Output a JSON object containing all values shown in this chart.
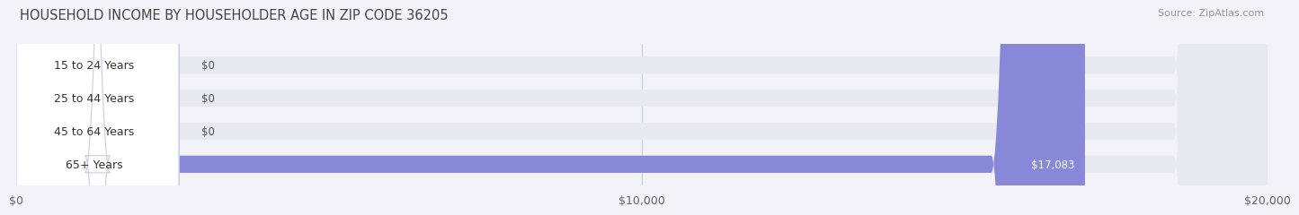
{
  "title": "HOUSEHOLD INCOME BY HOUSEHOLDER AGE IN ZIP CODE 36205",
  "source": "Source: ZipAtlas.com",
  "categories": [
    "15 to 24 Years",
    "25 to 44 Years",
    "45 to 64 Years",
    "65+ Years"
  ],
  "values": [
    0,
    0,
    0,
    17083
  ],
  "bar_colors": [
    "#a8c8e8",
    "#c8a8d8",
    "#88d0c8",
    "#8888d8"
  ],
  "value_labels": [
    "$0",
    "$0",
    "$0",
    "$17,083"
  ],
  "xlim": [
    0,
    20000
  ],
  "xticks": [
    0,
    10000,
    20000
  ],
  "xticklabels": [
    "$0",
    "$10,000",
    "$20,000"
  ],
  "bg_color": "#f2f2f8",
  "bar_bg_color": "#e8e8f0",
  "title_fontsize": 10.5,
  "tick_fontsize": 9,
  "label_fontsize": 9,
  "value_fontsize": 8.5
}
